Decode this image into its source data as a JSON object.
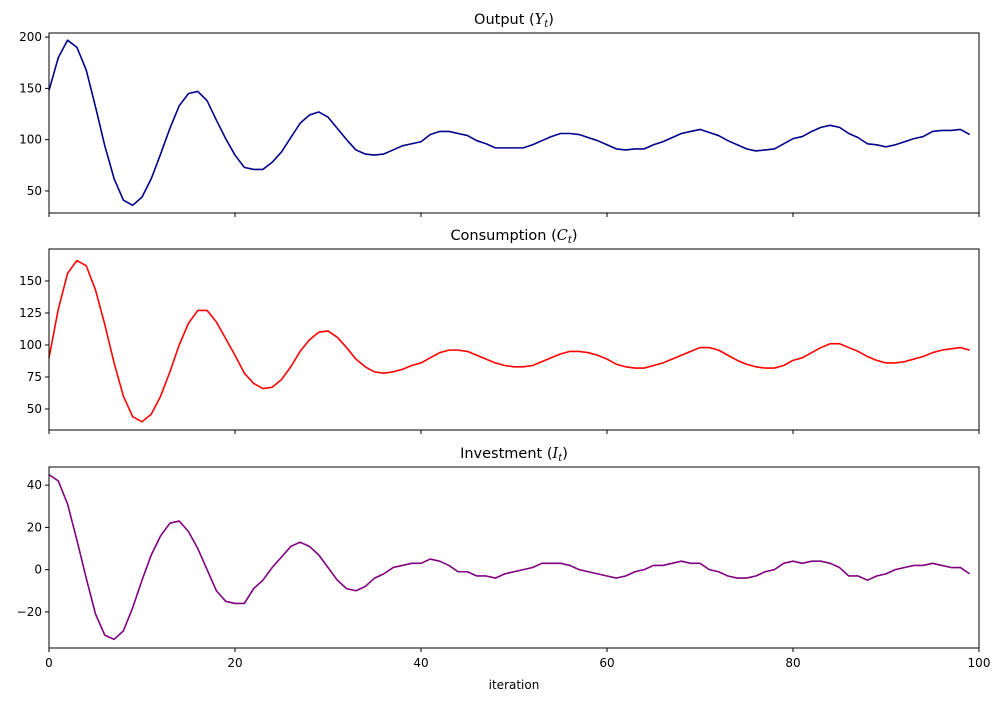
{
  "chart_data": [
    {
      "type": "line",
      "title": "Output (Y_t)",
      "title_text": "Output",
      "title_symbol": "Y",
      "title_sub": "t",
      "color": "#00008b",
      "xlim": [
        0,
        100
      ],
      "ylim": [
        28.5,
        204
      ],
      "yticks": [
        50,
        100,
        150,
        200
      ],
      "xticks": [
        0,
        20,
        40,
        60,
        80,
        100
      ],
      "show_xtick_labels": false,
      "grid": false,
      "values": [
        148,
        180,
        197,
        190,
        168,
        132,
        94,
        62,
        41,
        36,
        44,
        62,
        86,
        111,
        133,
        145,
        147,
        138,
        119,
        101,
        85,
        73,
        71,
        71,
        78,
        88,
        102,
        116,
        124,
        127,
        122,
        111,
        100,
        90,
        86,
        85,
        86,
        90,
        94,
        96,
        98,
        105,
        108,
        108,
        106,
        104,
        99,
        96,
        92,
        92,
        92,
        92,
        95,
        99,
        103,
        106,
        106,
        105,
        102,
        99,
        95,
        91,
        90,
        91,
        91,
        95,
        98,
        102,
        106,
        108,
        110,
        107,
        104,
        99,
        95,
        91,
        89,
        90,
        91,
        96,
        101,
        103,
        108,
        112,
        114,
        112,
        106,
        102,
        96,
        95,
        93,
        95,
        98,
        101,
        103,
        108,
        109,
        109,
        110,
        105
      ]
    },
    {
      "type": "line",
      "title": "Consumption (C_t)",
      "title_text": "Consumption",
      "title_symbol": "C",
      "title_sub": "t",
      "color": "#ff0000",
      "xlim": [
        0,
        100
      ],
      "ylim": [
        33.6,
        175
      ],
      "yticks": [
        50,
        75,
        100,
        125,
        150
      ],
      "xticks": [
        0,
        20,
        40,
        60,
        80,
        100
      ],
      "show_xtick_labels": false,
      "grid": false,
      "values": [
        90,
        128,
        156,
        166,
        162,
        143,
        116,
        86,
        60,
        44,
        40,
        46,
        60,
        79,
        100,
        117,
        127,
        127,
        118,
        105,
        92,
        78,
        70,
        66,
        67,
        73,
        83,
        95,
        104,
        110,
        111,
        106,
        98,
        89,
        83,
        79,
        78,
        79,
        81,
        84,
        86,
        90,
        94,
        96,
        96,
        95,
        92,
        89,
        86,
        84,
        83,
        83,
        84,
        87,
        90,
        93,
        95,
        95,
        94,
        92,
        89,
        85,
        83,
        82,
        82,
        84,
        86,
        89,
        92,
        95,
        98,
        98,
        96,
        92,
        88,
        85,
        83,
        82,
        82,
        84,
        88,
        90,
        94,
        98,
        101,
        101,
        98,
        95,
        91,
        88,
        86,
        86,
        87,
        89,
        91,
        94,
        96,
        97,
        98,
        96
      ]
    },
    {
      "type": "line",
      "title": "Investment (I_t)",
      "title_text": "Investment",
      "title_symbol": "I",
      "title_sub": "t",
      "color": "#800080",
      "xlim": [
        0,
        100
      ],
      "ylim": [
        -37.1,
        48.6
      ],
      "yticks": [
        -20,
        0,
        20,
        40
      ],
      "xticks": [
        0,
        20,
        40,
        60,
        80,
        100
      ],
      "show_xtick_labels": true,
      "xlabel": "iteration",
      "grid": false,
      "values": [
        45,
        42,
        31,
        14,
        -4,
        -21,
        -31,
        -33,
        -29,
        -18,
        -5,
        7,
        16,
        22,
        23,
        18,
        10,
        0,
        -10,
        -15,
        -16,
        -16,
        -9,
        -5,
        1,
        6,
        11,
        13,
        11,
        7,
        1,
        -5,
        -9,
        -10,
        -8,
        -4,
        -2,
        1,
        2,
        3,
        3,
        5,
        4,
        2,
        -1,
        -1,
        -3,
        -3,
        -4,
        -2,
        -1,
        0,
        1,
        3,
        3,
        3,
        2,
        0,
        -1,
        -2,
        -3,
        -4,
        -3,
        -1,
        0,
        2,
        2,
        3,
        4,
        3,
        3,
        0,
        -1,
        -3,
        -4,
        -4,
        -3,
        -1,
        0,
        3,
        4,
        3,
        4,
        4,
        3,
        1,
        -3,
        -3,
        -5,
        -3,
        -2,
        0,
        1,
        2,
        2,
        3,
        2,
        1,
        1,
        -2
      ]
    }
  ]
}
